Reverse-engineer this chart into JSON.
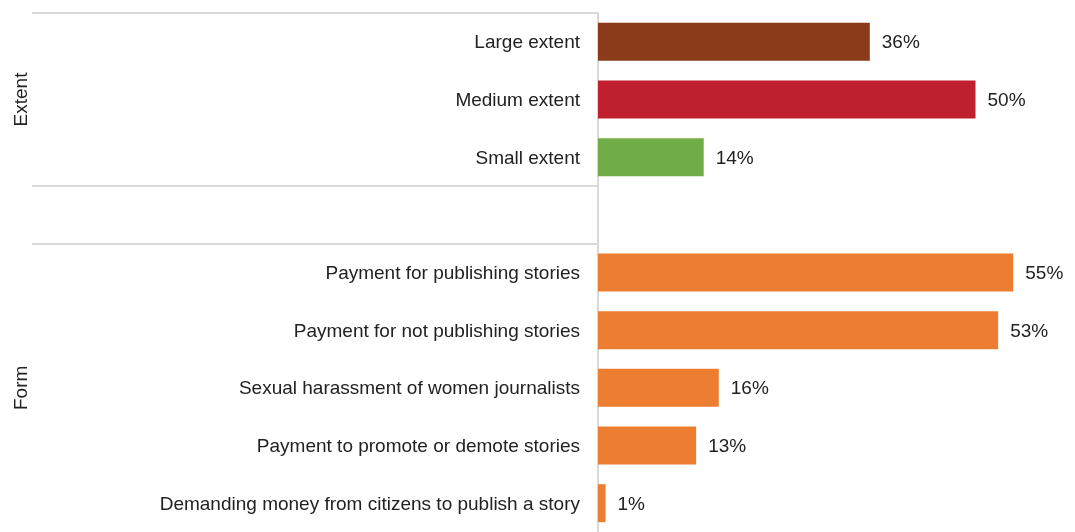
{
  "chart_data": {
    "type": "bar",
    "orientation": "horizontal",
    "categories": [
      "Large extent",
      "Medium extent",
      "Small extent",
      null,
      "Payment for publishing stories",
      "Payment for not publishing stories",
      "Sexual harassment of women journalists",
      "Payment to promote or demote stories",
      "Demanding money from citizens to publish a story"
    ],
    "values": [
      36,
      50,
      14,
      null,
      55,
      53,
      16,
      13,
      1
    ],
    "value_labels": [
      "36%",
      "50%",
      "14%",
      null,
      "55%",
      "53%",
      "16%",
      "13%",
      "1%"
    ],
    "colors": [
      "#8b3a1a",
      "#c01f2f",
      "#70ad47",
      null,
      "#ed7d31",
      "#ed7d31",
      "#ed7d31",
      "#ed7d31",
      "#ed7d31"
    ],
    "annotations": [
      "Extent",
      "Form"
    ]
  }
}
